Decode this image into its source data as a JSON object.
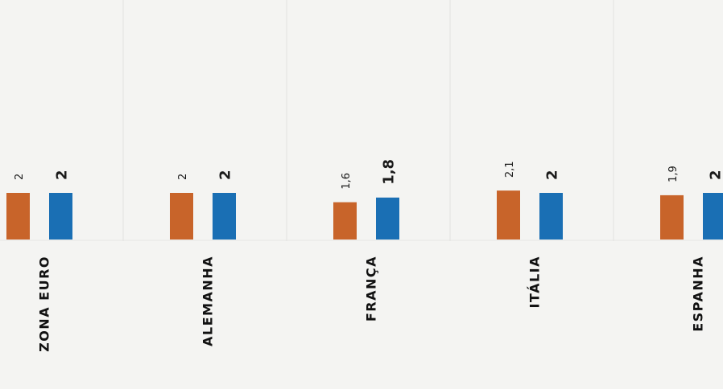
{
  "chart_data": {
    "type": "bar",
    "title": "",
    "xlabel": "",
    "ylabel": "",
    "categories": [
      "ZONA EURO",
      "ALEMANHA",
      "FRANÇA",
      "ITÁLIA",
      "ESPANHA"
    ],
    "series": [
      {
        "values": [
          2,
          2,
          1.6,
          2.1,
          1.9
        ],
        "labels": [
          "2",
          "2",
          "1,6",
          "2,1",
          "1,9"
        ],
        "color": "#c8642a"
      },
      {
        "values": [
          2,
          2,
          1.8,
          2,
          2
        ],
        "labels": [
          "2",
          "2",
          "1,8",
          "2",
          "2"
        ],
        "color": "#1a6fb4"
      }
    ],
    "ylim": [
      0,
      2.2
    ],
    "grid": false,
    "legend": "none"
  }
}
